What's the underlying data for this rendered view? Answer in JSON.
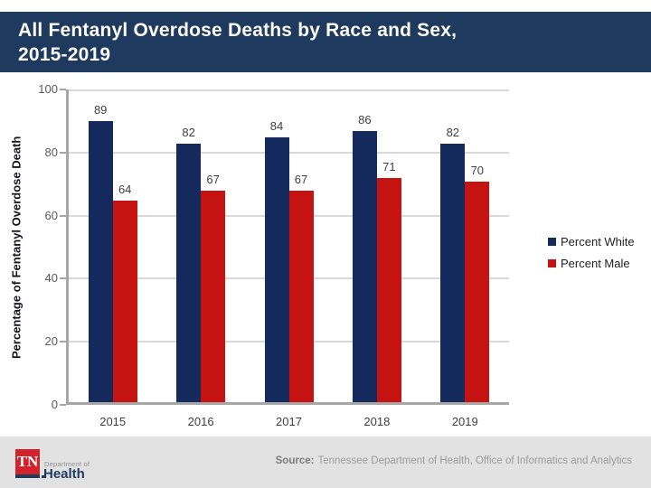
{
  "title": {
    "line1": "All Fentanyl Overdose Deaths by Race and Sex,",
    "line2": "2015-2019"
  },
  "chart_data": {
    "type": "bar",
    "title": "All Fentanyl Overdose Deaths by Race and Sex, 2015-2019",
    "categories": [
      "2015",
      "2016",
      "2017",
      "2018",
      "2019"
    ],
    "series": [
      {
        "name": "Percent White",
        "color": "#152A5C",
        "values": [
          89,
          82,
          84,
          86,
          82
        ]
      },
      {
        "name": "Percent Male",
        "color": "#C41310",
        "values": [
          64,
          67,
          67,
          71,
          70
        ]
      }
    ],
    "xlabel": "",
    "ylabel": "Percentage of Fentanyl Overdose Death",
    "ylim": [
      0,
      100
    ],
    "yticks": [
      0,
      20,
      40,
      60,
      80,
      100
    ],
    "grid": true,
    "legend_position": "right"
  },
  "footer": {
    "logo": {
      "abbr": "TN",
      "dept_line": "Department of",
      "health": "Health"
    },
    "source_label": "Source:",
    "source_text": "Tennessee Department of Health, Office of Informatics and Analytics"
  },
  "colors": {
    "title_bar_background": "#1F3A5F",
    "bar_white_series": "#152A5C",
    "bar_male_series": "#C41310",
    "footer_background": "#E2E2E2",
    "axis_line": "#A6A6A6",
    "gridline": "#D9D9D9",
    "logo_red": "#D2232D"
  }
}
